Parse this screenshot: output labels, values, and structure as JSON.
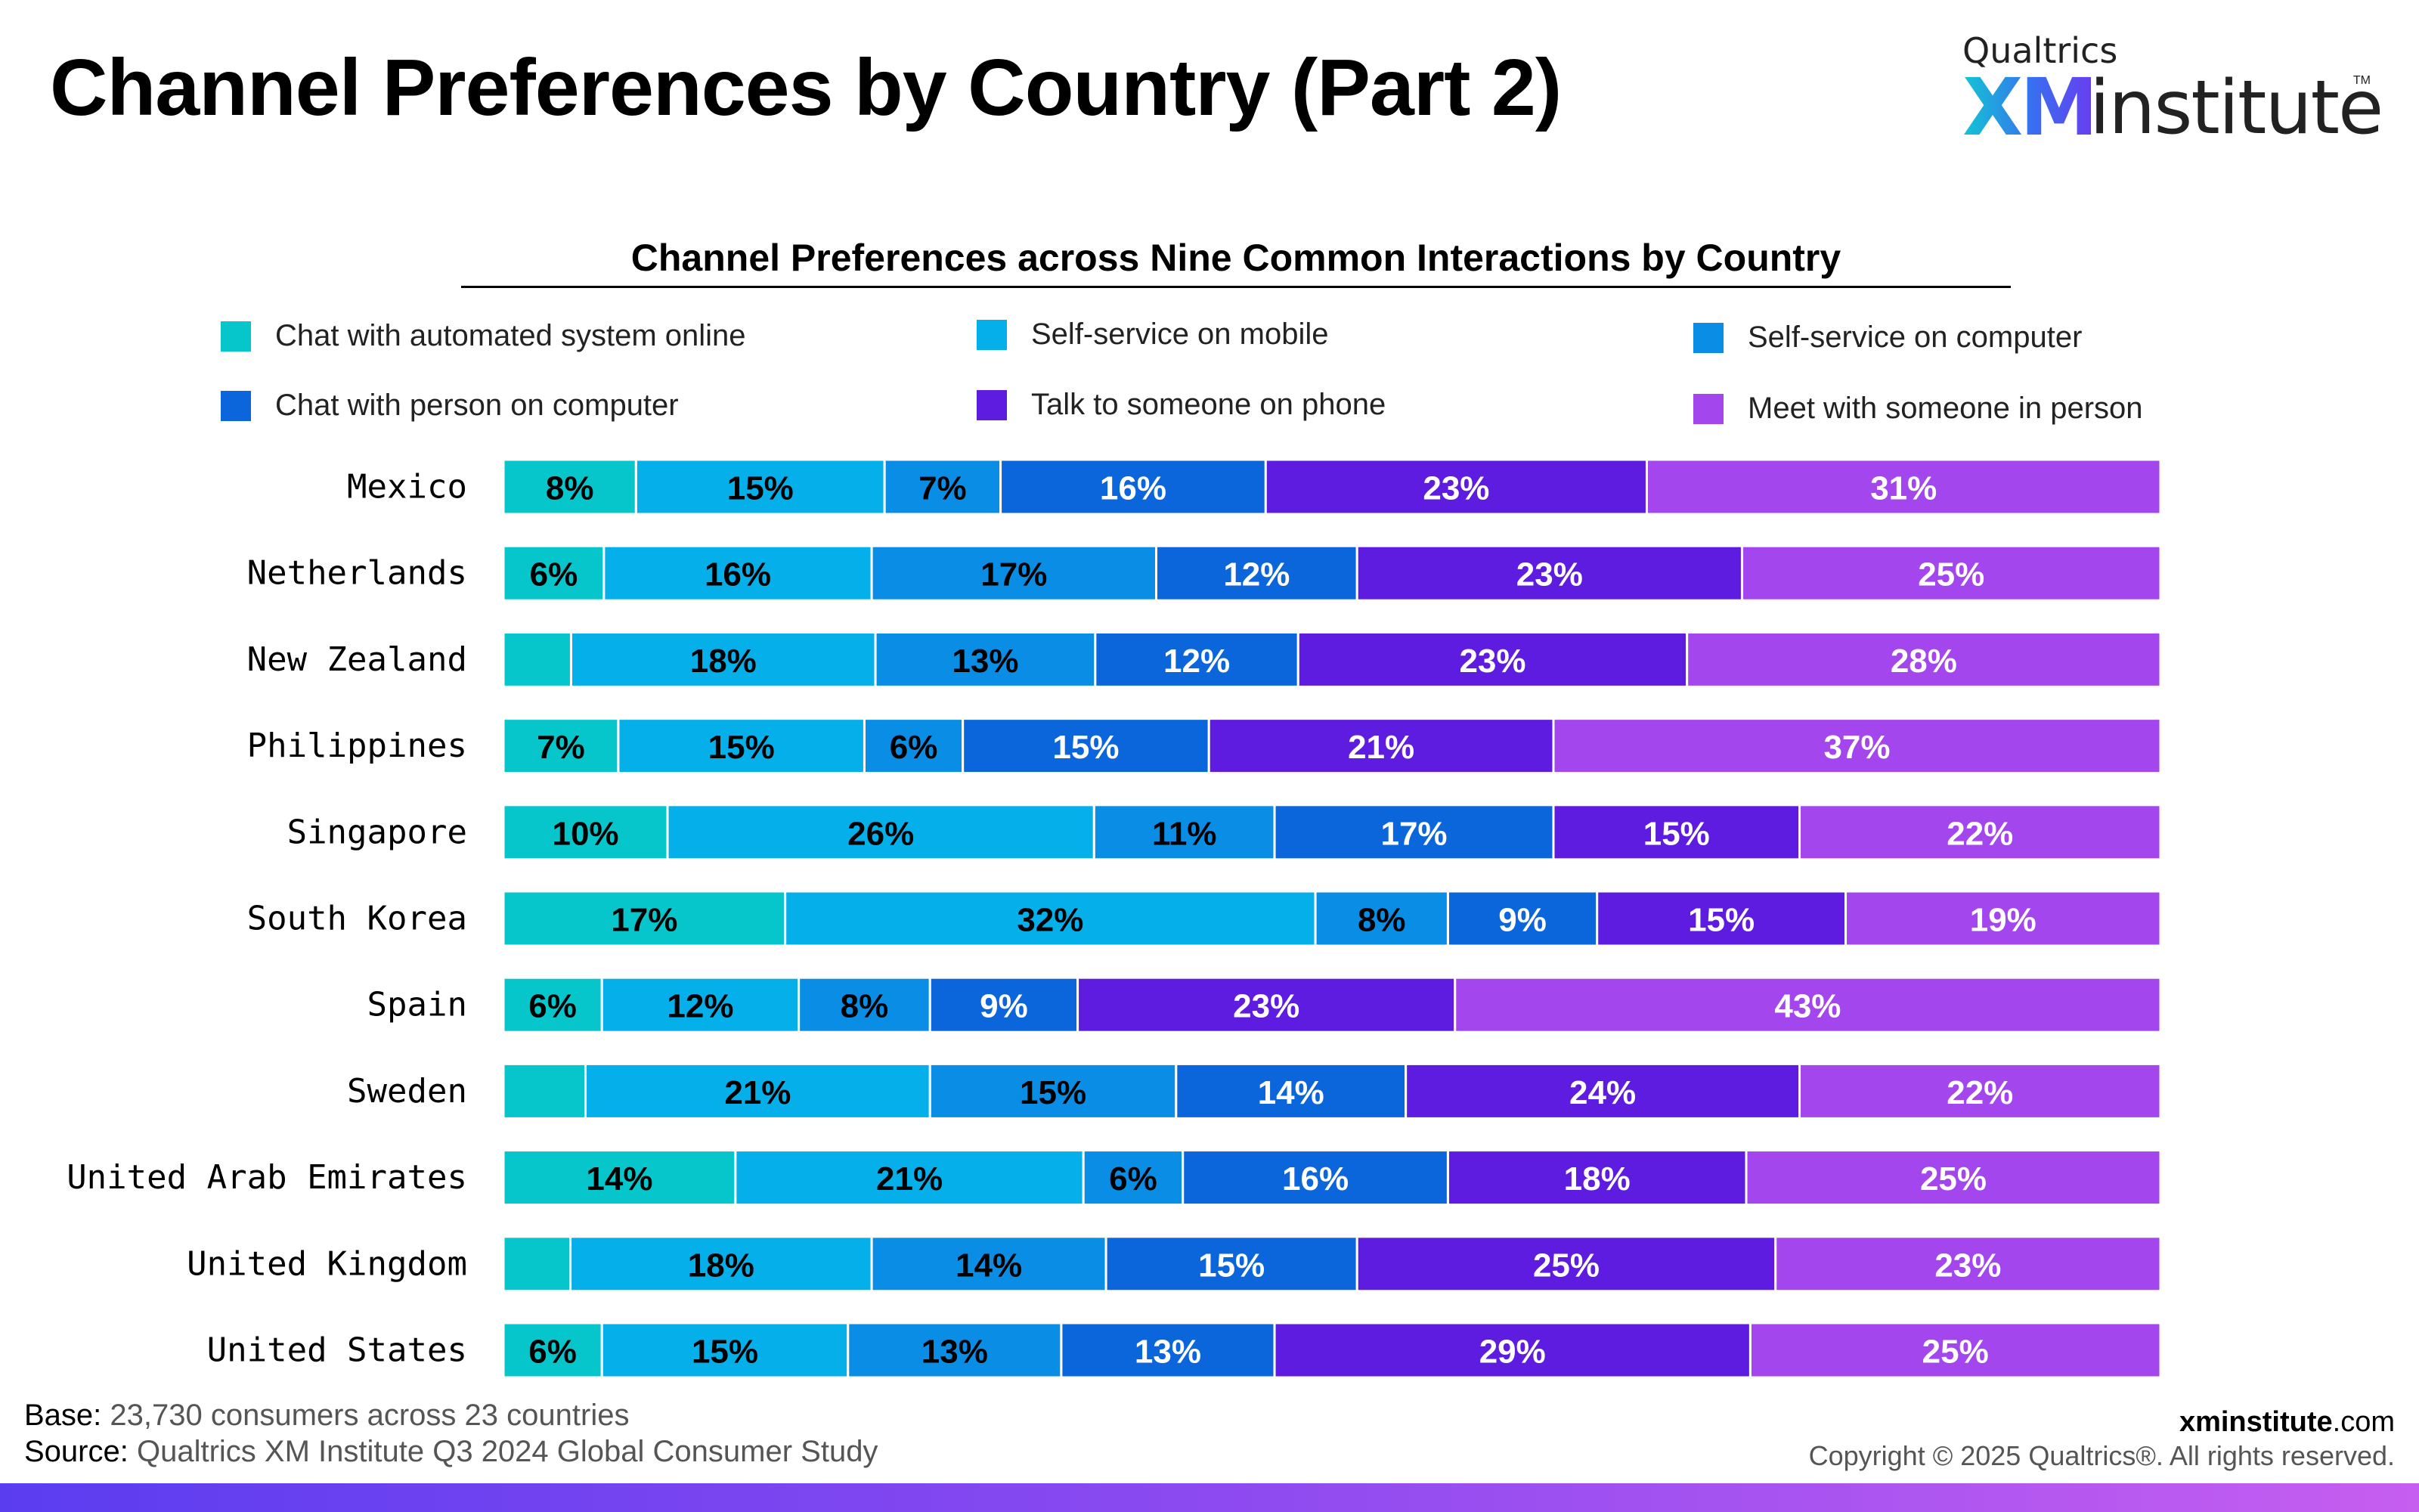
{
  "header": {
    "title": "Channel Preferences by Country (Part 2)",
    "logo_top": "Qualtrics",
    "logo_xm": "XM",
    "logo_institute": "institute",
    "logo_tm": "TM"
  },
  "chart_data": {
    "type": "bar",
    "orientation": "horizontal",
    "stacked": true,
    "title": "Channel Preferences across Nine Common Interactions by Country",
    "categories": [
      "Mexico",
      "Netherlands",
      "New Zealand",
      "Philippines",
      "Singapore",
      "South Korea",
      "Spain",
      "Sweden",
      "United Arab Emirates",
      "United Kingdom",
      "United States"
    ],
    "series": [
      {
        "name": "Chat with automated system online",
        "color": "#06c6cc",
        "values": [
          8,
          6,
          4,
          7,
          10,
          17,
          6,
          5,
          14,
          4,
          6
        ],
        "labels": [
          "8%",
          "6%",
          "",
          "7%",
          "10%",
          "17%",
          "6%",
          "",
          "14%",
          "",
          "6%"
        ]
      },
      {
        "name": "Self-service on mobile",
        "color": "#05b0ea",
        "values": [
          15,
          16,
          18,
          15,
          26,
          32,
          12,
          21,
          21,
          18,
          15
        ],
        "labels": [
          "15%",
          "16%",
          "18%",
          "15%",
          "26%",
          "32%",
          "12%",
          "21%",
          "21%",
          "18%",
          "15%"
        ]
      },
      {
        "name": "Self-service on computer",
        "color": "#0a8ee5",
        "values": [
          7,
          17,
          13,
          6,
          11,
          8,
          8,
          15,
          6,
          14,
          13
        ],
        "labels": [
          "7%",
          "17%",
          "13%",
          "6%",
          "11%",
          "8%",
          "8%",
          "15%",
          "6%",
          "14%",
          "13%"
        ]
      },
      {
        "name": "Chat with person on computer",
        "color": "#0b66dc",
        "values": [
          16,
          12,
          12,
          15,
          17,
          9,
          9,
          14,
          16,
          15,
          13
        ],
        "labels": [
          "16%",
          "12%",
          "12%",
          "15%",
          "17%",
          "9%",
          "9%",
          "14%",
          "16%",
          "15%",
          "13%"
        ]
      },
      {
        "name": "Talk to someone on phone",
        "color": "#5e1ce0",
        "values": [
          23,
          23,
          23,
          21,
          15,
          15,
          23,
          24,
          18,
          25,
          29
        ],
        "labels": [
          "23%",
          "23%",
          "23%",
          "21%",
          "15%",
          "15%",
          "23%",
          "24%",
          "18%",
          "25%",
          "29%"
        ]
      },
      {
        "name": "Meet with someone in person",
        "color": "#a346ee",
        "values": [
          31,
          25,
          28,
          37,
          22,
          19,
          43,
          22,
          25,
          23,
          25
        ],
        "labels": [
          "31%",
          "25%",
          "28%",
          "37%",
          "22%",
          "19%",
          "43%",
          "22%",
          "25%",
          "23%",
          "25%"
        ]
      }
    ],
    "legend_position": "top",
    "grid": false
  },
  "footer": {
    "base_key": "Base:",
    "base_text": "23,730 consumers across 23 countries",
    "source_key": "Source:",
    "source_text": "Qualtrics XM Institute Q3 2024 Global Consumer Study",
    "site_bold": "xminstitute",
    "site_rest": ".com",
    "copyright": "Copyright © 2025 Qualtrics®. All rights reserved."
  }
}
